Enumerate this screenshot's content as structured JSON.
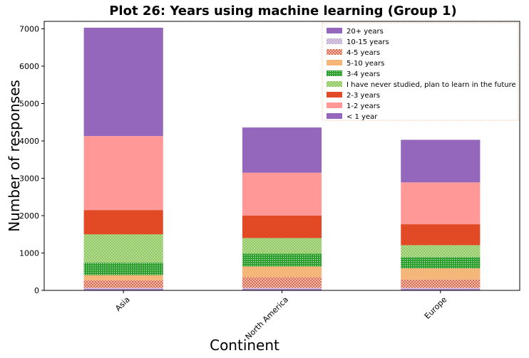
{
  "chart_data": {
    "type": "bar",
    "stacked": true,
    "title": "Plot 26: Years using machine learning (Group 1)",
    "xlabel": "Continent",
    "ylabel": "Number of responses",
    "categories": [
      "Asia",
      "North America",
      "Europe"
    ],
    "ylim": [
      0,
      7200
    ],
    "yticks": [
      0,
      1000,
      2000,
      3000,
      4000,
      5000,
      6000,
      7000
    ],
    "grid": false,
    "legend_position": "top-right",
    "series": [
      {
        "name": "20+ years",
        "color": "#9467bd",
        "pattern": "solid",
        "values": [
          30,
          30,
          30
        ]
      },
      {
        "name": "10-15 years",
        "color": "#c5b0d5",
        "pattern": "dots",
        "values": [
          40,
          40,
          40
        ]
      },
      {
        "name": "4-5 years",
        "color": "#e24a26",
        "pattern": "cross",
        "values": [
          200,
          280,
          220
        ]
      },
      {
        "name": "5-10 years",
        "color": "#f5b67a",
        "pattern": "solid",
        "values": [
          140,
          290,
          300
        ]
      },
      {
        "name": "3-4 years",
        "color": "#2ca02c",
        "pattern": "dense",
        "values": [
          330,
          340,
          300
        ]
      },
      {
        "name": "I have never studied, plan to learn in the future",
        "color": "#8fc960",
        "pattern": "dots",
        "values": [
          760,
          420,
          320
        ]
      },
      {
        "name": "2-3 years",
        "color": "#e24a26",
        "pattern": "solid",
        "values": [
          650,
          600,
          560
        ]
      },
      {
        "name": "1-2 years",
        "color": "#ff9896",
        "pattern": "solid",
        "values": [
          1980,
          1150,
          1120
        ]
      },
      {
        "name": "< 1 year",
        "color": "#9467bd",
        "pattern": "solid",
        "values": [
          2900,
          1210,
          1140
        ]
      }
    ]
  }
}
